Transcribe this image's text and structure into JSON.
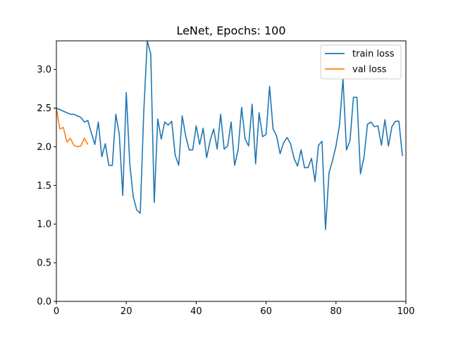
{
  "chart_data": {
    "type": "line",
    "title": "LeNet, Epochs: 100",
    "xlabel": "",
    "ylabel": "",
    "xlim": [
      0,
      100
    ],
    "ylim": [
      0,
      3.37
    ],
    "xticks": [
      0,
      20,
      40,
      60,
      80,
      100
    ],
    "yticks": [
      0.0,
      0.5,
      1.0,
      1.5,
      2.0,
      2.5,
      3.0
    ],
    "xtick_labels": [
      "0",
      "20",
      "40",
      "60",
      "80",
      "100"
    ],
    "ytick_labels": [
      "0.0",
      "0.5",
      "1.0",
      "1.5",
      "2.0",
      "2.5",
      "3.0"
    ],
    "grid": false,
    "legend_position": "top-right",
    "series": [
      {
        "name": "train loss",
        "color": "#1f77b4",
        "x": [
          0,
          1,
          2,
          3,
          4,
          5,
          6,
          7,
          8,
          9,
          10,
          11,
          12,
          13,
          14,
          15,
          16,
          17,
          18,
          19,
          20,
          21,
          22,
          23,
          24,
          25,
          26,
          27,
          28,
          29,
          30,
          31,
          32,
          33,
          34,
          35,
          36,
          37,
          38,
          39,
          40,
          41,
          42,
          43,
          44,
          45,
          46,
          47,
          48,
          49,
          50,
          51,
          52,
          53,
          54,
          55,
          56,
          57,
          58,
          59,
          60,
          61,
          62,
          63,
          64,
          65,
          66,
          67,
          68,
          69,
          70,
          71,
          72,
          73,
          74,
          75,
          76,
          77,
          78,
          79,
          80,
          81,
          82,
          83,
          84,
          85,
          86,
          87,
          88,
          89,
          90,
          91,
          92,
          93,
          94,
          95,
          96,
          97,
          98,
          99
        ],
        "y": [
          2.5,
          2.48,
          2.46,
          2.44,
          2.42,
          2.42,
          2.4,
          2.38,
          2.32,
          2.34,
          2.18,
          2.03,
          2.32,
          1.87,
          2.04,
          1.76,
          1.76,
          2.42,
          2.16,
          1.37,
          2.7,
          1.78,
          1.35,
          1.18,
          1.14,
          2.45,
          3.37,
          3.2,
          1.28,
          2.36,
          2.1,
          2.32,
          2.28,
          2.33,
          1.89,
          1.76,
          2.4,
          2.14,
          1.96,
          1.96,
          2.27,
          2.03,
          2.24,
          1.86,
          2.08,
          2.23,
          1.97,
          2.42,
          1.97,
          2.01,
          2.32,
          1.76,
          1.96,
          2.51,
          2.1,
          2.01,
          2.55,
          1.78,
          2.44,
          2.13,
          2.16,
          2.78,
          2.23,
          2.14,
          1.91,
          2.05,
          2.12,
          2.04,
          1.85,
          1.75,
          1.96,
          1.73,
          1.73,
          1.85,
          1.55,
          2.02,
          2.07,
          0.93,
          1.66,
          1.82,
          2.01,
          2.28,
          2.88,
          1.96,
          2.08,
          2.64,
          2.64,
          1.65,
          1.86,
          2.29,
          2.32,
          2.26,
          2.27,
          2.02,
          2.35,
          2.01,
          2.26,
          2.33,
          2.33,
          1.88
        ]
      },
      {
        "name": "val loss",
        "color": "#ff7f0e",
        "x": [
          0,
          1,
          2,
          3,
          4,
          5,
          6,
          7,
          8,
          9
        ],
        "y": [
          2.5,
          2.23,
          2.25,
          2.06,
          2.11,
          2.02,
          2.0,
          2.01,
          2.11,
          2.03
        ]
      }
    ]
  }
}
